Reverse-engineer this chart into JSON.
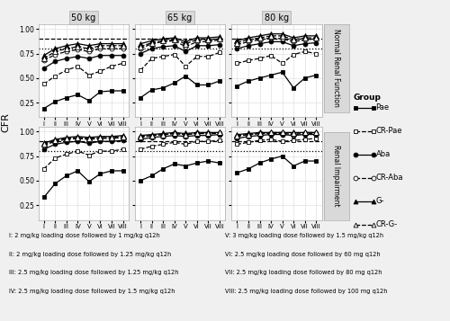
{
  "weights": [
    "50 kg",
    "65 kg",
    "80 kg"
  ],
  "row_labels": [
    "Normal Renal Function",
    "Renal Impairment"
  ],
  "x_labels": [
    "I",
    "II",
    "III",
    "IV",
    "V",
    "VI",
    "VII",
    "VIII"
  ],
  "groups": [
    "Pae",
    "CR-Pae",
    "Aba",
    "CR-Aba",
    "G-",
    "CR-G-"
  ],
  "hline_dashed": 0.9,
  "hline_dotted": 0.8,
  "normal": {
    "50kg": {
      "Pae": [
        0.19,
        0.26,
        0.3,
        0.33,
        0.27,
        0.36,
        0.37,
        0.37
      ],
      "CRPae": [
        0.44,
        0.52,
        0.58,
        0.62,
        0.53,
        0.57,
        0.62,
        0.65
      ],
      "Aba": [
        0.6,
        0.67,
        0.7,
        0.72,
        0.7,
        0.73,
        0.73,
        0.73
      ],
      "CRAba": [
        0.68,
        0.74,
        0.77,
        0.79,
        0.77,
        0.8,
        0.8,
        0.8
      ],
      "G": [
        0.73,
        0.8,
        0.83,
        0.85,
        0.83,
        0.85,
        0.85,
        0.85
      ],
      "CRG": [
        0.7,
        0.77,
        0.8,
        0.82,
        0.8,
        0.83,
        0.83,
        0.83
      ]
    },
    "65kg": {
      "Pae": [
        0.3,
        0.38,
        0.4,
        0.45,
        0.52,
        0.43,
        0.43,
        0.47
      ],
      "CRPae": [
        0.58,
        0.7,
        0.72,
        0.74,
        0.62,
        0.72,
        0.72,
        0.76
      ],
      "Aba": [
        0.75,
        0.8,
        0.82,
        0.83,
        0.77,
        0.83,
        0.83,
        0.84
      ],
      "CRAba": [
        0.8,
        0.85,
        0.87,
        0.88,
        0.82,
        0.87,
        0.87,
        0.89
      ],
      "G": [
        0.85,
        0.88,
        0.9,
        0.91,
        0.87,
        0.91,
        0.91,
        0.92
      ],
      "CRG": [
        0.82,
        0.86,
        0.88,
        0.89,
        0.85,
        0.89,
        0.89,
        0.9
      ]
    },
    "80kg": {
      "Pae": [
        0.42,
        0.47,
        0.5,
        0.53,
        0.56,
        0.4,
        0.5,
        0.53
      ],
      "CRPae": [
        0.65,
        0.68,
        0.7,
        0.73,
        0.65,
        0.74,
        0.77,
        0.75
      ],
      "Aba": [
        0.8,
        0.83,
        0.85,
        0.87,
        0.87,
        0.83,
        0.85,
        0.86
      ],
      "CRAba": [
        0.84,
        0.87,
        0.89,
        0.91,
        0.9,
        0.87,
        0.89,
        0.9
      ],
      "G": [
        0.88,
        0.91,
        0.93,
        0.95,
        0.95,
        0.91,
        0.93,
        0.93
      ],
      "CRG": [
        0.86,
        0.89,
        0.91,
        0.93,
        0.93,
        0.89,
        0.91,
        0.91
      ]
    }
  },
  "impaired": {
    "50kg": {
      "Pae": [
        0.33,
        0.47,
        0.55,
        0.6,
        0.49,
        0.57,
        0.6,
        0.6
      ],
      "CRPae": [
        0.62,
        0.73,
        0.77,
        0.8,
        0.76,
        0.8,
        0.8,
        0.82
      ],
      "Aba": [
        0.82,
        0.87,
        0.89,
        0.9,
        0.88,
        0.9,
        0.9,
        0.91
      ],
      "CRAba": [
        0.86,
        0.9,
        0.92,
        0.93,
        0.92,
        0.93,
        0.93,
        0.94
      ],
      "G": [
        0.88,
        0.92,
        0.94,
        0.95,
        0.94,
        0.95,
        0.95,
        0.96
      ],
      "CRG": [
        0.87,
        0.91,
        0.93,
        0.94,
        0.93,
        0.94,
        0.94,
        0.95
      ]
    },
    "65kg": {
      "Pae": [
        0.5,
        0.55,
        0.62,
        0.67,
        0.65,
        0.68,
        0.7,
        0.68
      ],
      "CRPae": [
        0.82,
        0.85,
        0.87,
        0.89,
        0.87,
        0.9,
        0.9,
        0.91
      ],
      "Aba": [
        0.92,
        0.94,
        0.95,
        0.96,
        0.95,
        0.96,
        0.96,
        0.97
      ],
      "CRAba": [
        0.94,
        0.96,
        0.97,
        0.98,
        0.97,
        0.98,
        0.98,
        0.98
      ],
      "G": [
        0.96,
        0.97,
        0.98,
        0.99,
        0.98,
        0.99,
        0.99,
        0.99
      ],
      "CRG": [
        0.95,
        0.96,
        0.97,
        0.98,
        0.97,
        0.98,
        0.98,
        0.99
      ]
    },
    "80kg": {
      "Pae": [
        0.58,
        0.62,
        0.68,
        0.72,
        0.75,
        0.65,
        0.7,
        0.7
      ],
      "CRPae": [
        0.87,
        0.89,
        0.91,
        0.92,
        0.9,
        0.91,
        0.92,
        0.93
      ],
      "Aba": [
        0.93,
        0.95,
        0.96,
        0.97,
        0.97,
        0.96,
        0.97,
        0.97
      ],
      "CRAba": [
        0.95,
        0.97,
        0.98,
        0.98,
        0.98,
        0.97,
        0.98,
        0.98
      ],
      "G": [
        0.97,
        0.98,
        0.99,
        0.99,
        0.99,
        0.99,
        0.99,
        0.99
      ],
      "CRG": [
        0.96,
        0.97,
        0.98,
        0.99,
        0.99,
        0.98,
        0.99,
        0.99
      ]
    }
  },
  "footnotes": [
    "I: 2 mg/kg loading dose followed by 1 mg/kg q12h",
    "II: 2 mg/kg loading dose followed by 1.25 mg/kg q12h",
    "III: 2.5 mg/kg loading dose followed by 1.25 mg/kg q12h",
    "IV: 2.5 mg/kg loading dose followed by 1.5 mg/kg q12h",
    "V: 3 mg/kg loading dose followed by 1.5 mg/kg q12h",
    "VI: 2.5 mg/kg loading dose followed by 60 mg q12h",
    "VII: 2.5 mg/kg loading dose followed by 80 mg q12h",
    "VIII: 2.5 mg/kg loading dose followed by 100 mg q12h"
  ],
  "bg_color": "#f0f0f0",
  "panel_bg": "#ffffff",
  "strip_bg": "#d9d9d9"
}
